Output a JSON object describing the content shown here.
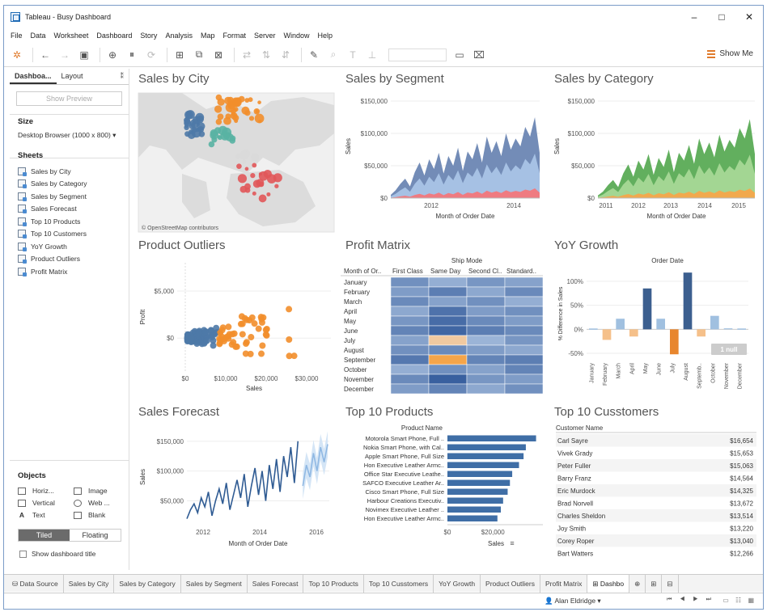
{
  "window": {
    "title": "Tableau - Busy Dashboard",
    "controls": [
      "–",
      "□",
      "✕"
    ]
  },
  "menu": [
    "File",
    "Data",
    "Worksheet",
    "Dashboard",
    "Story",
    "Analysis",
    "Map",
    "Format",
    "Server",
    "Window",
    "Help"
  ],
  "toolbar": {
    "show_me": "Show Me"
  },
  "left_pane": {
    "tabs": [
      "Dashboa...",
      "Layout"
    ],
    "preview_button": "Show Preview",
    "size_heading": "Size",
    "size_value": "Desktop Browser (1000 x 800) ▾",
    "sheets_heading": "Sheets",
    "sheets": [
      "Sales by City",
      "Sales by Category",
      "Sales by Segment",
      "Sales Forecast",
      "Top 10 Products",
      "Top 10 Customers",
      "YoY Growth",
      "Product Outliers",
      "Profit Matrix"
    ],
    "objects_heading": "Objects",
    "objects": [
      "Horiz...",
      "Image",
      "Vertical",
      "Web ...",
      "Text",
      "Blank"
    ],
    "tiled": "Tiled",
    "floating": "Floating",
    "show_title": "Show dashboard title"
  },
  "panels": {
    "sales_by_city": {
      "title": "Sales by City",
      "attribution": "© OpenStreetMap contributors"
    },
    "sales_by_segment": {
      "title": "Sales by Segment"
    },
    "sales_by_category": {
      "title": "Sales by Category"
    },
    "product_outliers": {
      "title": "Product Outliers"
    },
    "profit_matrix": {
      "title": "Profit Matrix"
    },
    "yoy_growth": {
      "title": "YoY Growth"
    },
    "sales_forecast": {
      "title": "Sales Forecast"
    },
    "top10_products": {
      "title": "Top 10 Products"
    },
    "top10_customers": {
      "title": "Top 10 Cusstomers"
    }
  },
  "chart_data": [
    {
      "id": "sales_by_segment",
      "type": "area",
      "xlabel": "Month of Order Date",
      "ylabel": "Sales",
      "xticks": [
        "2012",
        "2014"
      ],
      "yticks": [
        "$0",
        "$50,000",
        "$100,000",
        "$150,000"
      ],
      "ylim": [
        0,
        160000
      ],
      "colors": [
        "#f2777b",
        "#a9c4e6",
        "#6c86b3"
      ],
      "series_top": [
        5000,
        12000,
        22000,
        30000,
        18000,
        40000,
        55000,
        35000,
        60000,
        45000,
        70000,
        38000,
        65000,
        50000,
        78000,
        42000,
        72000,
        60000,
        85000,
        55000,
        95000,
        70000,
        88000,
        65000,
        100000,
        75000,
        92000,
        80000,
        110000,
        95000,
        125000,
        70000
      ]
    },
    {
      "id": "sales_by_category",
      "type": "area",
      "xlabel": "Month of Order Date",
      "ylabel": "Sales",
      "xticks": [
        "2011",
        "2012",
        "2013",
        "2014",
        "2015"
      ],
      "yticks": [
        "$0",
        "$50,000",
        "$100,000",
        "$150,000"
      ],
      "ylim": [
        0,
        160000
      ],
      "colors": [
        "#f6a64a",
        "#a6d896",
        "#5aab55"
      ],
      "series_top": [
        4000,
        10000,
        20000,
        28000,
        17000,
        38000,
        52000,
        33000,
        58000,
        44000,
        68000,
        36000,
        62000,
        48000,
        75000,
        40000,
        70000,
        58000,
        82000,
        53000,
        92000,
        68000,
        86000,
        63000,
        98000,
        72000,
        90000,
        78000,
        108000,
        92000,
        122000,
        68000
      ]
    },
    {
      "id": "product_outliers",
      "type": "scatter",
      "xlabel": "Sales",
      "ylabel": "Profit",
      "xticks": [
        "$0",
        "$10,000",
        "$20,000",
        "$30,000"
      ],
      "yticks": [
        "$0",
        "$5,000"
      ],
      "xlim": [
        -2000,
        36000
      ],
      "ylim": [
        -3500,
        8000
      ],
      "colors": [
        "#4e79a7",
        "#f28e2b"
      ]
    },
    {
      "id": "profit_matrix",
      "type": "heatmap",
      "header": "Ship Mode",
      "row_header": "Month of Or..",
      "columns": [
        "First Class",
        "Same Day",
        "Second Cl..",
        "Standard.."
      ],
      "rows": [
        "January",
        "February",
        "March",
        "April",
        "May",
        "June",
        "July",
        "August",
        "September",
        "October",
        "November",
        "December"
      ],
      "values": [
        [
          0.55,
          0.3,
          0.5,
          0.4
        ],
        [
          0.45,
          0.7,
          0.35,
          0.6
        ],
        [
          0.6,
          0.4,
          0.55,
          0.3
        ],
        [
          0.35,
          0.8,
          0.45,
          0.55
        ],
        [
          0.5,
          0.85,
          0.6,
          0.45
        ],
        [
          0.65,
          0.9,
          0.7,
          0.6
        ],
        [
          0.4,
          -0.3,
          0.25,
          0.5
        ],
        [
          0.55,
          0.6,
          0.45,
          0.35
        ],
        [
          0.75,
          -0.5,
          0.65,
          0.7
        ],
        [
          0.3,
          0.55,
          0.4,
          0.65
        ],
        [
          0.6,
          0.95,
          0.5,
          0.45
        ],
        [
          0.45,
          0.65,
          0.35,
          0.55
        ]
      ]
    },
    {
      "id": "yoy_growth",
      "type": "bar",
      "header": "Order Date",
      "ylabel": "% Difference in Sales",
      "yticks": [
        "-50%",
        "0%",
        "50%",
        "100%"
      ],
      "ylim": [
        -60,
        125
      ],
      "categories": [
        "January",
        "February",
        "March",
        "April",
        "May",
        "June",
        "July",
        "August",
        "Septemb..",
        "October",
        "November",
        "December"
      ],
      "values": [
        0,
        -22,
        22,
        -15,
        85,
        22,
        -52,
        118,
        -15,
        28,
        2,
        0
      ],
      "null_badge": "1 null"
    },
    {
      "id": "sales_forecast",
      "type": "line",
      "xlabel": "Month of Order Date",
      "ylabel": "Sales",
      "xticks": [
        "2012",
        "2014",
        "2016"
      ],
      "yticks": [
        "$50,000",
        "$100,000",
        "$150,000"
      ],
      "ylim": [
        10000,
        170000
      ],
      "actual": [
        20000,
        35000,
        45000,
        30000,
        55000,
        40000,
        65000,
        25000,
        50000,
        70000,
        45000,
        80000,
        35000,
        60000,
        85000,
        55000,
        95000,
        40000,
        75000,
        105000,
        60000,
        100000,
        50000,
        110000,
        70000,
        120000,
        65000,
        125000,
        90000,
        140000,
        80000,
        150000
      ],
      "forecast": [
        75000,
        110000,
        90000,
        130000,
        100000,
        140000,
        115000,
        145000
      ]
    },
    {
      "id": "top10_products",
      "type": "bar",
      "header": "Product Name",
      "xlabel": "Sales",
      "xticks": [
        "$0",
        "$20,000"
      ],
      "xlim": [
        0,
        42000
      ],
      "categories": [
        "Motorola Smart Phone, Full ..",
        "Nokia Smart Phone, with Cal..",
        "Apple Smart Phone, Full Size",
        "Hon Executive Leather Armc..",
        "Office Star Executive Leathe..",
        "SAFCO Executive Leather Ar..",
        "Cisco Smart Phone, Full Size",
        "Harbour Creations Executiv..",
        "Novimex Executive Leather ..",
        "Hon Executive Leather Armc.."
      ],
      "values": [
        39000,
        34500,
        33500,
        31500,
        28500,
        27500,
        26500,
        24500,
        23500,
        22000
      ]
    },
    {
      "id": "top10_customers",
      "type": "table",
      "header": "Customer Name",
      "rows": [
        [
          "Carl Sayre",
          "$16,654"
        ],
        [
          "Vivek Grady",
          "$15,653"
        ],
        [
          "Peter Fuller",
          "$15,063"
        ],
        [
          "Barry Franz",
          "$14,564"
        ],
        [
          "Eric Murdock",
          "$14,325"
        ],
        [
          "Brad Norvell",
          "$13,672"
        ],
        [
          "Charles Sheldon",
          "$13,514"
        ],
        [
          "Joy Smith",
          "$13,220"
        ],
        [
          "Corey Roper",
          "$13,040"
        ],
        [
          "Bart Watters",
          "$12,266"
        ]
      ]
    }
  ],
  "sheet_tabs": [
    "Data Source",
    "Sales by City",
    "Sales by Category",
    "Sales by Segment",
    "Sales Forecast",
    "Top 10 Products",
    "Top 10 Cusstomers",
    "YoY Growth",
    "Product Outliers",
    "Profit Matrix",
    "Dashbo"
  ],
  "status": {
    "user": "Alan Eldridge",
    "nav": "⏮ ◀ ▶ ⏭"
  }
}
